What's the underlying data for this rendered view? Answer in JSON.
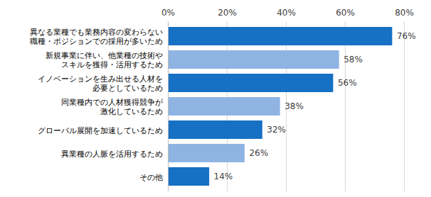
{
  "chart_data": {
    "type": "bar",
    "orientation": "horizontal",
    "categories": [
      "異なる業種でも業務内容の変わらない\n職種・ポジションでの採用が多いため",
      "新規事業に伴い、他業種の技術や\nスキルを獲得・活用するため",
      "イノベーションを生み出せる人材を\n必要としているため",
      "同業種内での人材獲得競争が\n激化しているため",
      "グローバル展開を加速しているため",
      "異業種の人脈を活用するため",
      "その他"
    ],
    "values": [
      76,
      58,
      56,
      38,
      32,
      26,
      14
    ],
    "value_labels": [
      "76%",
      "58%",
      "56%",
      "38%",
      "32%",
      "26%",
      "14%"
    ],
    "colors": [
      "#1670c4",
      "#8fb4e3",
      "#1670c4",
      "#8fb4e3",
      "#1670c4",
      "#8fb4e3",
      "#1670c4"
    ],
    "xlim": [
      0,
      80
    ],
    "xticks": [
      {
        "value": 0,
        "label": "0%"
      },
      {
        "value": 20,
        "label": "20%"
      },
      {
        "value": 40,
        "label": "40%"
      },
      {
        "value": 60,
        "label": "60%"
      },
      {
        "value": 80,
        "label": "80%"
      }
    ],
    "grid": true,
    "data_labels": true
  }
}
